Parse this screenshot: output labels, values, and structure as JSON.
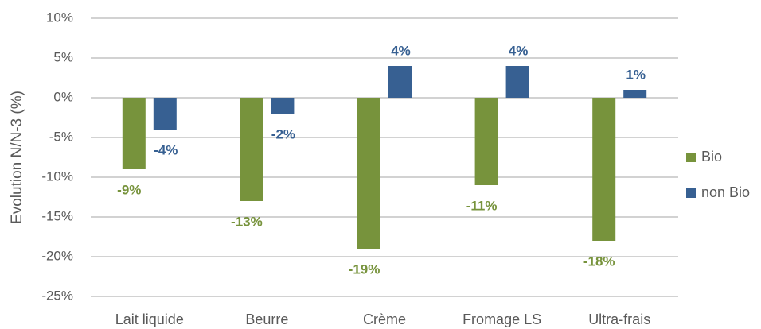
{
  "chart_data": {
    "type": "bar",
    "y_label": "Evolution N/N-3 (%)",
    "categories": [
      "Lait liquide",
      "Beurre",
      "Crème",
      "Fromage LS",
      "Ultra-frais"
    ],
    "series": [
      {
        "name": "Bio",
        "color": "#77933c",
        "values": [
          -9,
          -13,
          -19,
          -11,
          -18
        ],
        "value_labels": [
          "-9%",
          "-13%",
          "-19%",
          "-11%",
          "-18%"
        ]
      },
      {
        "name": "non Bio",
        "color": "#376092",
        "values": [
          -4,
          -2,
          4,
          4,
          1
        ],
        "value_labels": [
          "-4%",
          "-2%",
          "4%",
          "4%",
          "1%"
        ]
      }
    ],
    "ylim": [
      -25,
      10
    ],
    "yticks": [
      {
        "value": -25,
        "label": "-25%"
      },
      {
        "value": -20,
        "label": "-20%"
      },
      {
        "value": -15,
        "label": "-15%"
      },
      {
        "value": -10,
        "label": "-10%"
      },
      {
        "value": -5,
        "label": "-5%"
      },
      {
        "value": 0,
        "label": "0%"
      },
      {
        "value": 5,
        "label": "5%"
      },
      {
        "value": 10,
        "label": "10%"
      }
    ],
    "grid": true,
    "legend": "right"
  }
}
